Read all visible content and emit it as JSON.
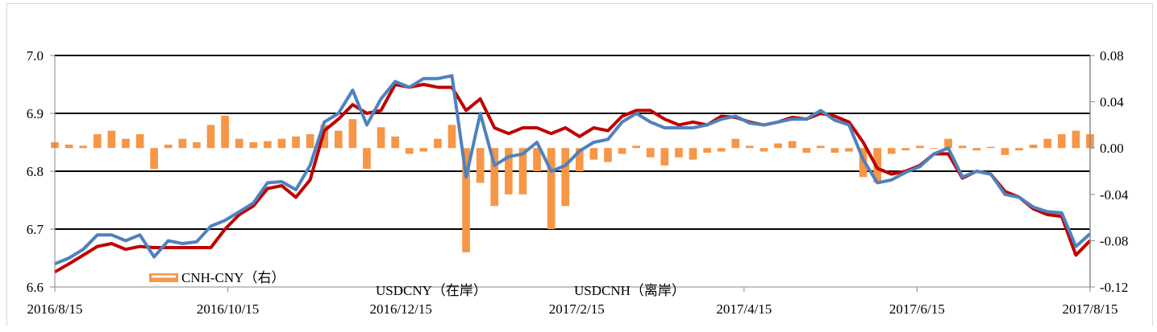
{
  "chart_data": {
    "type": "line+bar",
    "title": "",
    "xlabel": "",
    "ylabel": "",
    "y_left_lim": [
      6.6,
      7.0
    ],
    "y_left_ticks": [
      "6.6",
      "6.7",
      "6.8",
      "6.9",
      "7.0"
    ],
    "y_right_lim": [
      -0.12,
      0.08
    ],
    "y_right_ticks": [
      "-0.12",
      "-0.08",
      "-0.04",
      "0.00",
      "0.04",
      "0.08"
    ],
    "x_range": [
      "2016-08-15",
      "2017-08-15"
    ],
    "x_ticks": [
      "2016/8/15",
      "2016/10/15",
      "2016/12/15",
      "2017/2/15",
      "2017/4/15",
      "2017/6/15",
      "2017/8/15"
    ],
    "x_tick_dates": [
      "2016-08-15",
      "2016-10-15",
      "2016-12-15",
      "2017-02-15",
      "2017-04-15",
      "2017-06-15",
      "2017-08-15"
    ],
    "grid": "horizontal",
    "legend": [
      {
        "label": "CNH-CNY（右）",
        "type": "bar",
        "color": "#F79646"
      },
      {
        "label": "USDCNY（在岸）",
        "type": "line",
        "color": "#C00000"
      },
      {
        "label": "USDCNH（离岸）",
        "type": "line",
        "color": "#4F81BD"
      }
    ],
    "dates": [
      "2016-08-15",
      "2016-08-20",
      "2016-08-25",
      "2016-08-30",
      "2016-09-04",
      "2016-09-09",
      "2016-09-14",
      "2016-09-19",
      "2016-09-24",
      "2016-09-29",
      "2016-10-04",
      "2016-10-09",
      "2016-10-14",
      "2016-10-19",
      "2016-10-24",
      "2016-10-29",
      "2016-11-03",
      "2016-11-08",
      "2016-11-13",
      "2016-11-18",
      "2016-11-23",
      "2016-11-28",
      "2016-12-03",
      "2016-12-08",
      "2016-12-13",
      "2016-12-18",
      "2016-12-23",
      "2016-12-28",
      "2017-01-02",
      "2017-01-07",
      "2017-01-12",
      "2017-01-17",
      "2017-01-22",
      "2017-01-27",
      "2017-02-01",
      "2017-02-06",
      "2017-02-11",
      "2017-02-16",
      "2017-02-21",
      "2017-02-26",
      "2017-03-03",
      "2017-03-08",
      "2017-03-13",
      "2017-03-18",
      "2017-03-23",
      "2017-03-28",
      "2017-04-02",
      "2017-04-07",
      "2017-04-12",
      "2017-04-17",
      "2017-04-22",
      "2017-04-27",
      "2017-05-02",
      "2017-05-07",
      "2017-05-12",
      "2017-05-17",
      "2017-05-22",
      "2017-05-27",
      "2017-06-01",
      "2017-06-06",
      "2017-06-11",
      "2017-06-16",
      "2017-06-21",
      "2017-06-26",
      "2017-07-01",
      "2017-07-06",
      "2017-07-11",
      "2017-07-16",
      "2017-07-21",
      "2017-07-26",
      "2017-07-31",
      "2017-08-05",
      "2017-08-10",
      "2017-08-15"
    ],
    "series": [
      {
        "name": "USDCNY（在岸）",
        "axis": "left",
        "type": "line",
        "color": "#C00000",
        "values": [
          6.626,
          6.64,
          6.655,
          6.67,
          6.675,
          6.665,
          6.67,
          6.668,
          6.668,
          6.668,
          6.668,
          6.668,
          6.7,
          6.725,
          6.74,
          6.77,
          6.775,
          6.755,
          6.785,
          6.87,
          6.89,
          6.915,
          6.9,
          6.905,
          6.95,
          6.945,
          6.95,
          6.945,
          6.945,
          6.905,
          6.925,
          6.875,
          6.865,
          6.875,
          6.875,
          6.865,
          6.875,
          6.86,
          6.875,
          6.87,
          6.895,
          6.905,
          6.905,
          6.89,
          6.88,
          6.885,
          6.88,
          6.895,
          6.893,
          6.885,
          6.88,
          6.885,
          6.893,
          6.89,
          6.9,
          6.895,
          6.885,
          6.85,
          6.805,
          6.795,
          6.8,
          6.81,
          6.83,
          6.83,
          6.788,
          6.8,
          6.795,
          6.765,
          6.755,
          6.735,
          6.725,
          6.722,
          6.655,
          6.68
        ]
      },
      {
        "name": "USDCNH（离岸）",
        "axis": "left",
        "type": "line",
        "color": "#4F81BD",
        "values": [
          6.64,
          6.65,
          6.665,
          6.69,
          6.69,
          6.68,
          6.69,
          6.652,
          6.68,
          6.675,
          6.678,
          6.705,
          6.715,
          6.73,
          6.745,
          6.78,
          6.782,
          6.768,
          6.81,
          6.885,
          6.9,
          6.94,
          6.88,
          6.925,
          6.955,
          6.945,
          6.96,
          6.96,
          6.965,
          6.79,
          6.9,
          6.81,
          6.825,
          6.83,
          6.85,
          6.8,
          6.81,
          6.835,
          6.85,
          6.855,
          6.885,
          6.9,
          6.885,
          6.875,
          6.875,
          6.875,
          6.88,
          6.89,
          6.895,
          6.883,
          6.88,
          6.885,
          6.89,
          6.89,
          6.905,
          6.888,
          6.88,
          6.82,
          6.78,
          6.785,
          6.798,
          6.808,
          6.83,
          6.84,
          6.79,
          6.8,
          6.795,
          6.76,
          6.755,
          6.738,
          6.73,
          6.728,
          6.67,
          6.692
        ]
      },
      {
        "name": "CNH-CNY（右）",
        "axis": "right",
        "type": "bar",
        "color": "#F79646",
        "values": [
          0.005,
          0.003,
          0.002,
          0.012,
          0.015,
          0.008,
          0.012,
          -0.018,
          0.003,
          0.008,
          0.005,
          0.02,
          0.028,
          0.008,
          0.005,
          0.006,
          0.008,
          0.01,
          0.012,
          0.02,
          0.015,
          0.025,
          -0.018,
          0.018,
          0.01,
          -0.005,
          -0.003,
          0.008,
          0.02,
          -0.09,
          -0.03,
          -0.05,
          -0.04,
          -0.04,
          -0.02,
          -0.07,
          -0.05,
          -0.02,
          -0.01,
          -0.012,
          -0.005,
          0.002,
          -0.008,
          -0.015,
          -0.008,
          -0.01,
          -0.004,
          -0.003,
          0.008,
          0.002,
          -0.003,
          0.004,
          0.006,
          -0.004,
          0.002,
          -0.004,
          -0.003,
          -0.025,
          -0.03,
          -0.005,
          -0.002,
          0.002,
          0.0,
          0.008,
          0.002,
          -0.002,
          0.001,
          -0.006,
          -0.002,
          0.003,
          0.008,
          0.012,
          0.015,
          0.012
        ]
      }
    ]
  }
}
